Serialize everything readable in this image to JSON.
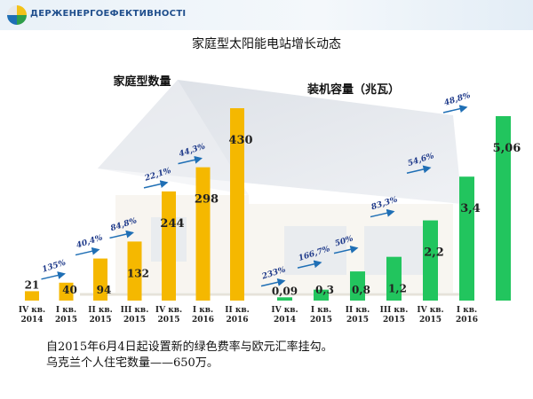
{
  "header": {
    "logo_text": "ДЕРЖЕНЕРГОЕФЕКТИВНОСТІ"
  },
  "title": "家庭型太阳能电站增长动态",
  "footer": [
    "自2015年6月4日起设置新的绿色费率与欧元汇率挂勾。",
    "乌克兰个人住宅数量——650万。"
  ],
  "colors": {
    "left_bars": "#f5b800",
    "right_bars": "#22c55e",
    "arrow": "#1f6fb5",
    "growth_text": "#1f3a8a"
  },
  "chart_data": [
    {
      "type": "bar",
      "title": "家庭型数量",
      "categories": [
        "IV кв. 2014",
        "I кв. 2015",
        "II кв. 2015",
        "III кв. 2015",
        "IV кв. 2015",
        "I кв. 2016",
        "II кв. 2016"
      ],
      "values": [
        21,
        40,
        94,
        132,
        244,
        298,
        430
      ],
      "value_labels": [
        "21",
        "40",
        "94",
        "132",
        "244",
        "298",
        "430"
      ],
      "growth_labels": [
        "",
        "135%",
        "40,4%",
        "84,8%",
        "22,1%",
        "44,3%",
        ""
      ],
      "ylim": [
        0,
        440
      ]
    },
    {
      "type": "bar",
      "title": "装机容量（兆瓦）",
      "categories": [
        "IV кв. 2014",
        "I кв. 2015",
        "II кв. 2015",
        "III кв. 2015",
        "IV кв. 2015",
        "I кв. 2016",
        ""
      ],
      "values": [
        0.09,
        0.3,
        0.8,
        1.2,
        2.2,
        3.4,
        5.06
      ],
      "value_labels": [
        "0,09",
        "0,3",
        "0,8",
        "1,2",
        "2,2",
        "3,4",
        "5,06"
      ],
      "growth_labels": [
        "233%",
        "166,7%",
        "50%",
        "83,3%",
        "54,6%",
        "48,8%",
        ""
      ],
      "ylim": [
        0,
        5.4
      ]
    }
  ]
}
